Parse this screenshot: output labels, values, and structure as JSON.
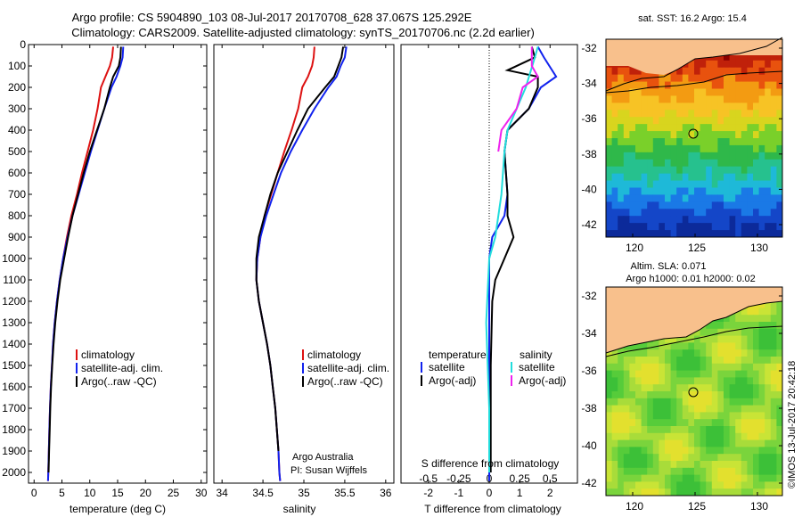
{
  "header": {
    "title_line1": "Argo profile: CS 5904890_103 08-Jul-2017 20170708_628 37.067S 125.292E",
    "title_line2": "Climatology: CARS2009. Satellite-adjusted climatology: synTS_20170706.nc (2.2d earlier)"
  },
  "colors": {
    "climatology": "#dd1111",
    "satellite": "#1122ee",
    "argo": "#000000",
    "sal_satellite": "#22dddd",
    "sal_argo": "#ee22ee"
  },
  "chart_data": [
    {
      "type": "line",
      "panel": "temperature",
      "xlabel": "temperature (deg C)",
      "ylim": [
        2050,
        0
      ],
      "xlim": [
        -1,
        31
      ],
      "xticks": [
        0,
        5,
        10,
        15,
        20,
        25,
        30
      ],
      "yticks": [
        0,
        100,
        200,
        300,
        400,
        500,
        600,
        700,
        800,
        900,
        1000,
        1100,
        1200,
        1300,
        1400,
        1500,
        1600,
        1700,
        1800,
        1900,
        2000
      ],
      "legend": [
        "climatology",
        "satellite-adj. clim.",
        "Argo(..raw -QC)"
      ],
      "series": [
        {
          "name": "climatology",
          "color": "#dd1111",
          "points": [
            [
              14.2,
              10
            ],
            [
              14.0,
              60
            ],
            [
              13.6,
              100
            ],
            [
              12.8,
              150
            ],
            [
              12.0,
              200
            ],
            [
              11.4,
              300
            ],
            [
              10.6,
              400
            ],
            [
              9.6,
              500
            ],
            [
              8.6,
              600
            ],
            [
              7.7,
              700
            ],
            [
              6.7,
              800
            ],
            [
              5.9,
              900
            ],
            [
              5.2,
              1000
            ],
            [
              4.6,
              1100
            ],
            [
              4.1,
              1200
            ],
            [
              3.7,
              1300
            ],
            [
              3.4,
              1400
            ],
            [
              3.2,
              1500
            ],
            [
              3.0,
              1600
            ],
            [
              2.85,
              1700
            ],
            [
              2.75,
              1800
            ],
            [
              2.65,
              1900
            ],
            [
              2.55,
              2000
            ],
            [
              2.5,
              2040
            ]
          ]
        },
        {
          "name": "satellite-adj. clim.",
          "color": "#1122ee",
          "points": [
            [
              16.0,
              10
            ],
            [
              15.9,
              60
            ],
            [
              15.5,
              100
            ],
            [
              14.8,
              150
            ],
            [
              13.9,
              200
            ],
            [
              12.6,
              300
            ],
            [
              11.4,
              400
            ],
            [
              10.2,
              500
            ],
            [
              9.1,
              600
            ],
            [
              8.0,
              700
            ],
            [
              6.9,
              800
            ],
            [
              6.0,
              900
            ],
            [
              5.2,
              1000
            ],
            [
              4.6,
              1100
            ],
            [
              4.1,
              1200
            ],
            [
              3.7,
              1300
            ],
            [
              3.4,
              1400
            ],
            [
              3.2,
              1500
            ],
            [
              3.0,
              1600
            ],
            [
              2.85,
              1700
            ],
            [
              2.75,
              1800
            ],
            [
              2.65,
              1900
            ],
            [
              2.55,
              2000
            ],
            [
              2.5,
              2040
            ]
          ]
        },
        {
          "name": "Argo(..raw -QC)",
          "color": "#000000",
          "points": [
            [
              15.6,
              10
            ],
            [
              15.5,
              60
            ],
            [
              15.2,
              100
            ],
            [
              14.2,
              150
            ],
            [
              13.6,
              200
            ],
            [
              12.6,
              300
            ],
            [
              11.3,
              400
            ],
            [
              10.0,
              500
            ],
            [
              8.9,
              600
            ],
            [
              7.9,
              700
            ],
            [
              6.9,
              800
            ],
            [
              6.1,
              900
            ],
            [
              5.4,
              1000
            ],
            [
              4.7,
              1100
            ],
            [
              4.2,
              1200
            ],
            [
              3.8,
              1300
            ],
            [
              3.5,
              1400
            ],
            [
              3.25,
              1500
            ],
            [
              3.05,
              1600
            ],
            [
              2.9,
              1700
            ],
            [
              2.8,
              1800
            ],
            [
              2.7,
              1900
            ],
            [
              2.6,
              2000
            ]
          ]
        }
      ]
    },
    {
      "type": "line",
      "panel": "salinity",
      "xlabel": "salinity",
      "ylim": [
        2050,
        0
      ],
      "xlim": [
        33.9,
        36.1
      ],
      "xticks": [
        34,
        34.5,
        35,
        35.5,
        36
      ],
      "xticklabels": [
        "34",
        "34.5",
        "35",
        "35.5",
        "36"
      ],
      "legend": [
        "climatology",
        "satellite-adj. clim.",
        "Argo(..raw -QC)"
      ],
      "annotation": [
        "Argo Australia",
        "PI: Susan Wijffels"
      ],
      "series": [
        {
          "name": "climatology",
          "color": "#dd1111",
          "points": [
            [
              35.13,
              10
            ],
            [
              35.12,
              60
            ],
            [
              35.1,
              100
            ],
            [
              35.05,
              150
            ],
            [
              34.98,
              200
            ],
            [
              34.93,
              300
            ],
            [
              34.85,
              400
            ],
            [
              34.76,
              500
            ],
            [
              34.68,
              600
            ],
            [
              34.6,
              700
            ],
            [
              34.52,
              800
            ],
            [
              34.47,
              900
            ],
            [
              34.43,
              1000
            ],
            [
              34.42,
              1100
            ],
            [
              34.45,
              1200
            ],
            [
              34.5,
              1300
            ],
            [
              34.55,
              1400
            ],
            [
              34.59,
              1500
            ],
            [
              34.62,
              1600
            ],
            [
              34.65,
              1700
            ],
            [
              34.67,
              1800
            ],
            [
              34.69,
              1900
            ],
            [
              34.7,
              2000
            ],
            [
              34.71,
              2040
            ]
          ]
        },
        {
          "name": "satellite-adj. clim.",
          "color": "#1122ee",
          "points": [
            [
              35.52,
              10
            ],
            [
              35.5,
              60
            ],
            [
              35.45,
              100
            ],
            [
              35.4,
              150
            ],
            [
              35.3,
              200
            ],
            [
              35.13,
              300
            ],
            [
              34.98,
              400
            ],
            [
              34.84,
              500
            ],
            [
              34.72,
              600
            ],
            [
              34.63,
              700
            ],
            [
              34.54,
              800
            ],
            [
              34.47,
              900
            ],
            [
              34.43,
              1000
            ],
            [
              34.42,
              1100
            ],
            [
              34.45,
              1200
            ],
            [
              34.5,
              1300
            ],
            [
              34.55,
              1400
            ],
            [
              34.59,
              1500
            ],
            [
              34.62,
              1600
            ],
            [
              34.65,
              1700
            ],
            [
              34.67,
              1800
            ],
            [
              34.69,
              1900
            ],
            [
              34.7,
              2000
            ],
            [
              34.71,
              2040
            ]
          ]
        },
        {
          "name": "Argo(..raw -QC)",
          "color": "#000000",
          "points": [
            [
              35.48,
              10
            ],
            [
              35.46,
              60
            ],
            [
              35.42,
              100
            ],
            [
              35.37,
              150
            ],
            [
              35.26,
              200
            ],
            [
              35.05,
              300
            ],
            [
              34.92,
              400
            ],
            [
              34.8,
              500
            ],
            [
              34.68,
              600
            ],
            [
              34.59,
              700
            ],
            [
              34.52,
              800
            ],
            [
              34.45,
              900
            ],
            [
              34.42,
              1000
            ],
            [
              34.42,
              1100
            ],
            [
              34.45,
              1200
            ],
            [
              34.5,
              1300
            ],
            [
              34.55,
              1400
            ],
            [
              34.59,
              1500
            ],
            [
              34.62,
              1600
            ],
            [
              34.65,
              1700
            ],
            [
              34.67,
              1800
            ],
            [
              34.69,
              1900
            ]
          ]
        }
      ]
    },
    {
      "type": "line",
      "panel": "difference",
      "xlabel_bottom": "T difference from climatology",
      "xlabel_top": "S difference from climatology",
      "ylim": [
        2050,
        0
      ],
      "xlim": [
        -2.9,
        2.9
      ],
      "xticks": [
        -2,
        -1,
        0,
        1,
        2
      ],
      "top_ticks": [
        -0.5,
        -0.25,
        0,
        0.25,
        0.5
      ],
      "top_ticklabels": [
        "-0.5",
        "-0.25",
        "0",
        "0.25",
        "0.5"
      ],
      "legend_groups": [
        {
          "title": "temperature",
          "items": [
            "satellite",
            "Argo(-adj)"
          ]
        },
        {
          "title": "salinity",
          "items": [
            "satellite",
            "Argo(-adj)"
          ]
        }
      ],
      "series": [
        {
          "name": "temperature satellite",
          "color": "#1122ee",
          "points": [
            [
              1.6,
              10
            ],
            [
              1.8,
              60
            ],
            [
              2.2,
              150
            ],
            [
              1.7,
              200
            ],
            [
              1.3,
              300
            ],
            [
              0.6,
              400
            ],
            [
              0.5,
              500
            ],
            [
              0.6,
              700
            ],
            [
              0.5,
              800
            ],
            [
              0.1,
              900
            ],
            [
              0,
              1000
            ],
            [
              0,
              1200
            ],
            [
              0,
              2040
            ]
          ]
        },
        {
          "name": "temperature Argo(-adj)",
          "color": "#000000",
          "points": [
            [
              1.4,
              10
            ],
            [
              1.5,
              60
            ],
            [
              0.6,
              120
            ],
            [
              1.6,
              150
            ],
            [
              1.6,
              200
            ],
            [
              1.3,
              300
            ],
            [
              0.6,
              400
            ],
            [
              0.5,
              500
            ],
            [
              0.6,
              700
            ],
            [
              0.6,
              800
            ],
            [
              0.8,
              900
            ],
            [
              0.5,
              1000
            ],
            [
              0.2,
              1100
            ],
            [
              0.1,
              1200
            ],
            [
              0.05,
              1500
            ],
            [
              0.05,
              2000
            ]
          ]
        },
        {
          "name": "salinity satellite",
          "color": "#22dddd",
          "points": [
            [
              1.6,
              10
            ],
            [
              1.5,
              60
            ],
            [
              1.2,
              200
            ],
            [
              0.6,
              400
            ],
            [
              0.5,
              500
            ],
            [
              0.4,
              700
            ],
            [
              0.2,
              900
            ],
            [
              0,
              1000
            ],
            [
              -0.1,
              1300
            ],
            [
              0,
              1700
            ],
            [
              0,
              2000
            ]
          ]
        },
        {
          "name": "salinity Argo(-adj)",
          "color": "#ee22ee",
          "points": [
            [
              1.4,
              10
            ],
            [
              1.4,
              100
            ],
            [
              1.6,
              150
            ],
            [
              1.1,
              200
            ],
            [
              0.9,
              300
            ],
            [
              0.4,
              400
            ],
            [
              0.3,
              500
            ]
          ]
        }
      ]
    }
  ],
  "maps": [
    {
      "title": "sat. SST: 16.2  Argo: 15.4",
      "yticklabels": [
        "-32",
        "-34",
        "-36",
        "-38",
        "-40",
        "-42"
      ],
      "xticklabels": [
        "120",
        "125",
        "130"
      ]
    },
    {
      "title_line1": "Altim. SLA: 0.071",
      "title_line2": "Argo h1000: 0.01 h2000: 0.02",
      "yticklabels": [
        "-32",
        "-34",
        "-36",
        "-38",
        "-40",
        "-42"
      ],
      "xticklabels": [
        "120",
        "125",
        "130"
      ]
    }
  ],
  "watermark": "©IMOS 13-Jul-2017 20:42:18"
}
